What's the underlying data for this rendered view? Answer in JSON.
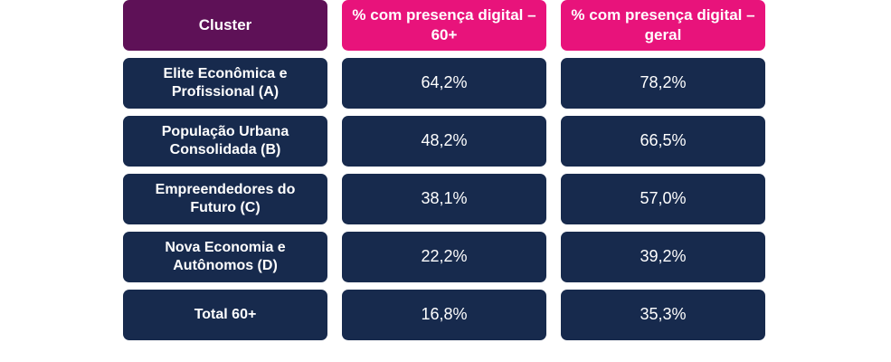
{
  "header": {
    "cluster": "Cluster",
    "col_60": "% com presença digital – 60+",
    "col_geral": "% com presença digital – geral"
  },
  "rows": [
    {
      "cluster": "Elite Econômica e Profissional (A)",
      "pct_60": "64,2%",
      "pct_geral": "78,2%"
    },
    {
      "cluster": "População Urbana Consolidada (B)",
      "pct_60": "48,2%",
      "pct_geral": "66,5%"
    },
    {
      "cluster": "Empreendedores do Futuro (C)",
      "pct_60": "38,1%",
      "pct_geral": "57,0%"
    },
    {
      "cluster": "Nova Economia e Autônomos (D)",
      "pct_60": "22,2%",
      "pct_geral": "39,2%"
    },
    {
      "cluster": "Total 60+",
      "pct_60": "16,8%",
      "pct_geral": "35,3%"
    }
  ],
  "colors": {
    "cluster_header": "#5e1157",
    "pct_header": "#e8137b",
    "body_cell": "#172a4d"
  }
}
